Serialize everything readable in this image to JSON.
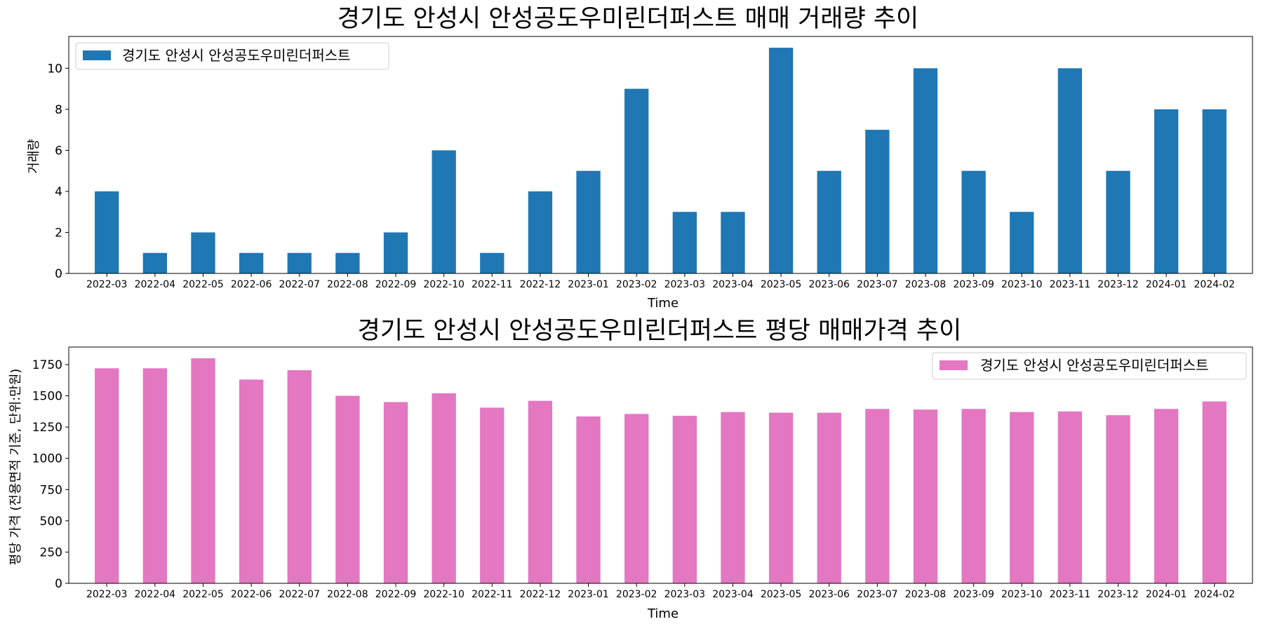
{
  "chart_data": [
    {
      "type": "bar",
      "title": "경기도 안성시 안성공도우미린더퍼스트 매매 거래량 추이",
      "xlabel": "Time",
      "ylabel": "거래량",
      "categories": [
        "2022-03",
        "2022-04",
        "2022-05",
        "2022-06",
        "2022-07",
        "2022-08",
        "2022-09",
        "2022-10",
        "2022-11",
        "2022-12",
        "2023-01",
        "2023-02",
        "2023-03",
        "2023-04",
        "2023-05",
        "2023-06",
        "2023-07",
        "2023-08",
        "2023-09",
        "2023-10",
        "2023-11",
        "2023-12",
        "2024-01",
        "2024-02"
      ],
      "series": [
        {
          "name": "경기도 안성시 안성공도우미린더퍼스트",
          "color": "#1f77b4",
          "values": [
            4,
            1,
            2,
            1,
            1,
            1,
            2,
            6,
            1,
            4,
            5,
            9,
            3,
            3,
            11,
            5,
            7,
            10,
            5,
            3,
            10,
            5,
            8,
            8
          ]
        }
      ],
      "ylim": [
        0,
        11.55
      ],
      "yticks": [
        0,
        2,
        4,
        6,
        8,
        10
      ],
      "legend": "top-left",
      "grid": false
    },
    {
      "type": "bar",
      "title": "경기도 안성시 안성공도우미린더퍼스트 평당 매매가격 추이",
      "xlabel": "Time",
      "ylabel": "평당 가격 (전용면적 기준, 단위:만원)",
      "categories": [
        "2022-03",
        "2022-04",
        "2022-05",
        "2022-06",
        "2022-07",
        "2022-08",
        "2022-09",
        "2022-10",
        "2022-11",
        "2022-12",
        "2023-01",
        "2023-02",
        "2023-03",
        "2023-04",
        "2023-05",
        "2023-06",
        "2023-07",
        "2023-08",
        "2023-09",
        "2023-10",
        "2023-11",
        "2023-12",
        "2024-01",
        "2024-02"
      ],
      "series": [
        {
          "name": "경기도 안성시 안성공도우미린더퍼스트",
          "color": "#e377c2",
          "values": [
            1720,
            1720,
            1800,
            1630,
            1705,
            1500,
            1450,
            1520,
            1405,
            1460,
            1335,
            1355,
            1340,
            1370,
            1365,
            1365,
            1395,
            1390,
            1395,
            1370,
            1375,
            1345,
            1395,
            1455
          ]
        }
      ],
      "ylim": [
        0,
        1890
      ],
      "yticks": [
        0,
        250,
        500,
        750,
        1000,
        1250,
        1500,
        1750
      ],
      "legend": "top-right",
      "grid": false
    }
  ]
}
